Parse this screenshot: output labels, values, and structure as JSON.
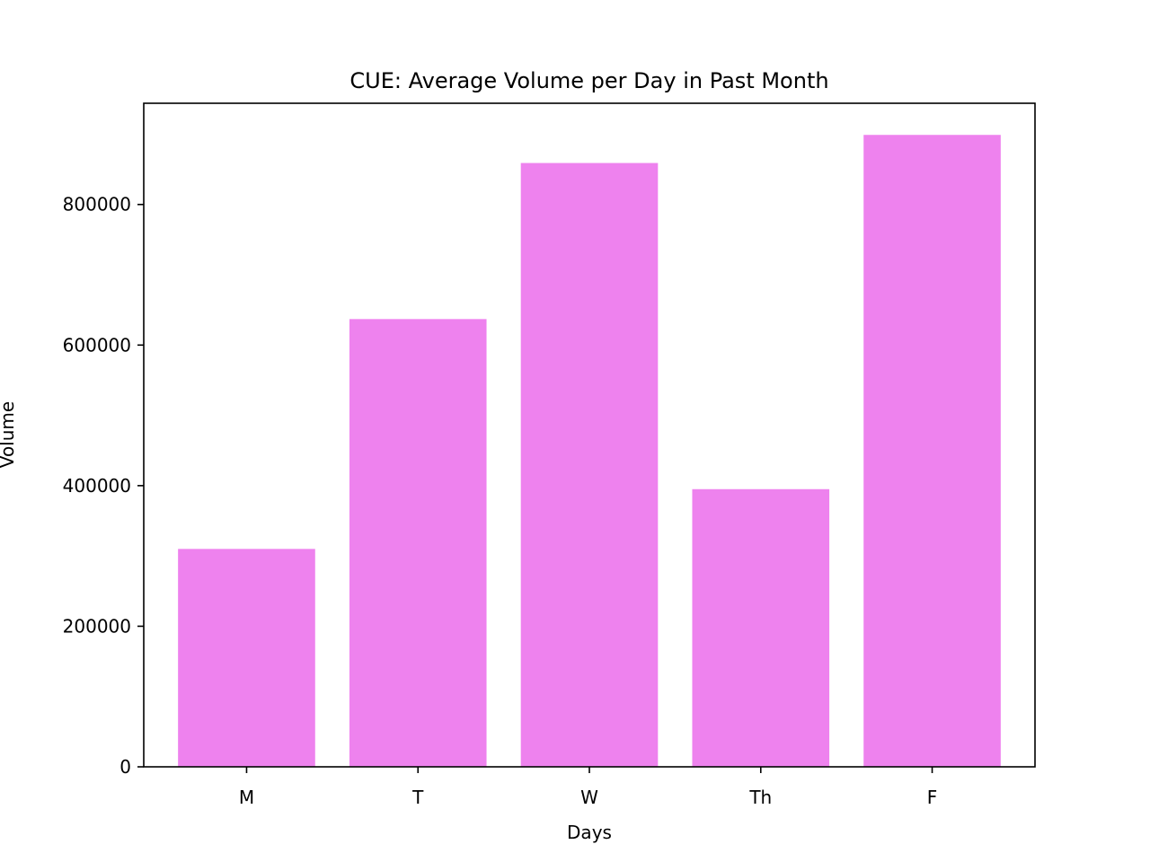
{
  "chart_data": {
    "type": "bar",
    "title": "CUE: Average Volume per Day in Past Month",
    "xlabel": "Days",
    "ylabel": "Volume",
    "categories": [
      "M",
      "T",
      "W",
      "Th",
      "F"
    ],
    "values": [
      310000,
      637000,
      859000,
      395000,
      899000
    ],
    "yticks": [
      0,
      200000,
      400000,
      600000,
      800000
    ],
    "ytick_labels": [
      "0",
      "200000",
      "400000",
      "600000",
      "800000"
    ],
    "ylim": [
      0,
      944000
    ],
    "grid": false,
    "legend": "none",
    "bar_color": "#ee82ee"
  }
}
